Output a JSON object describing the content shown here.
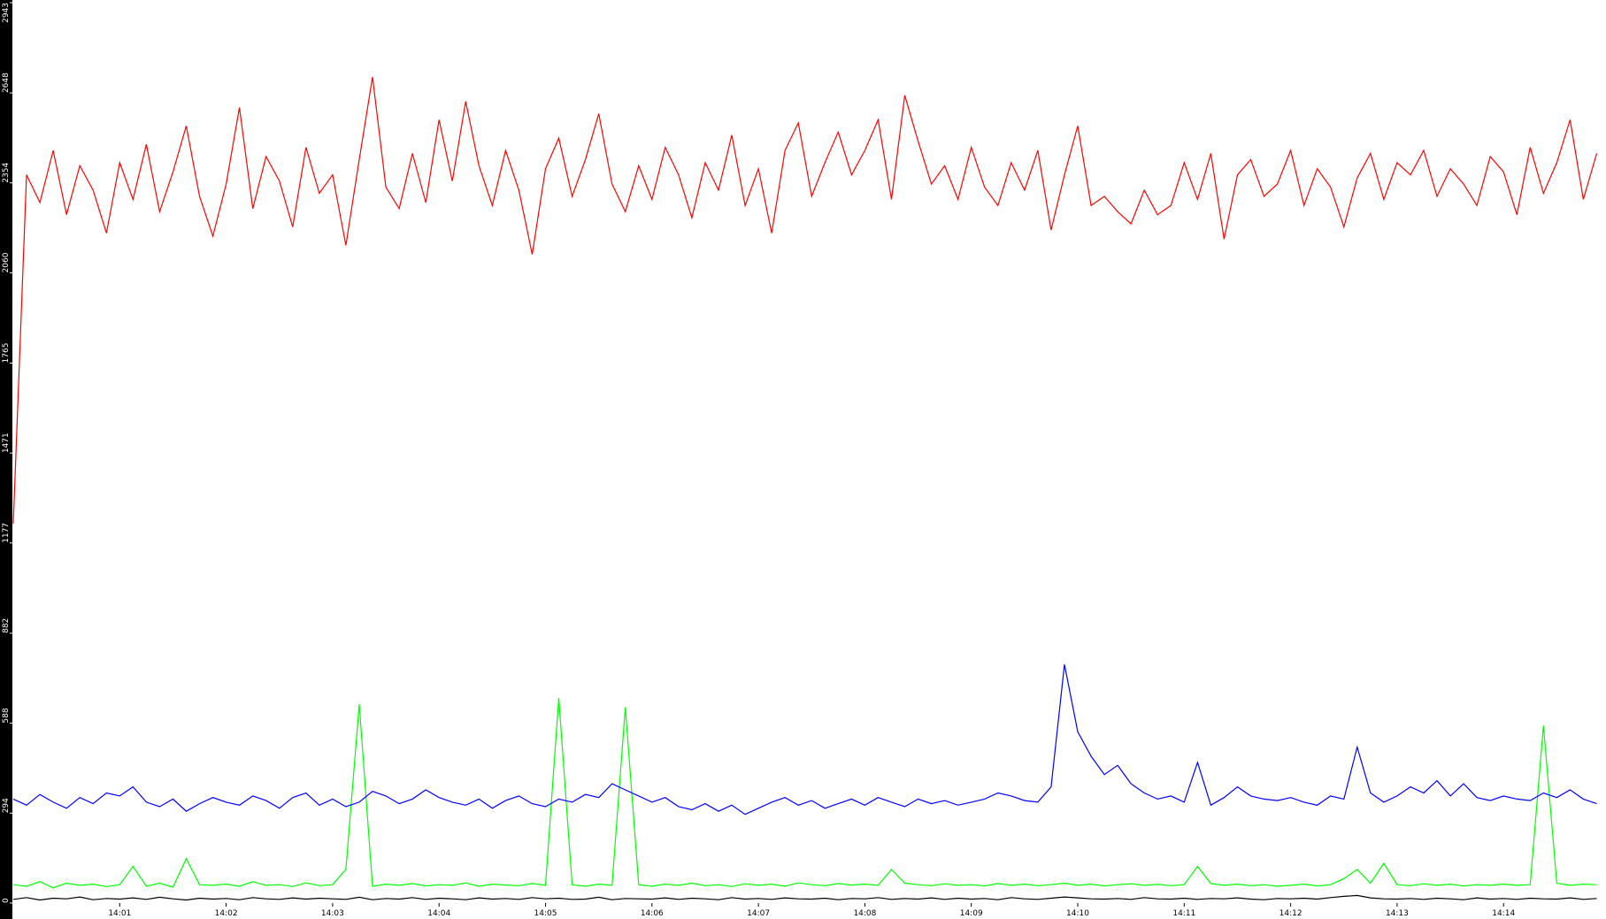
{
  "chart_data": {
    "type": "line",
    "categories": [
      null,
      null,
      null,
      null,
      null,
      null,
      null,
      null,
      "14:01",
      null,
      null,
      null,
      null,
      null,
      null,
      null,
      "14:02",
      null,
      null,
      null,
      null,
      null,
      null,
      null,
      "14:03",
      null,
      null,
      null,
      null,
      null,
      null,
      null,
      "14:04",
      null,
      null,
      null,
      null,
      null,
      null,
      null,
      "14:05",
      null,
      null,
      null,
      null,
      null,
      null,
      null,
      "14:06",
      null,
      null,
      null,
      null,
      null,
      null,
      null,
      "14:07",
      null,
      null,
      null,
      null,
      null,
      null,
      null,
      "14:08",
      null,
      null,
      null,
      null,
      null,
      null,
      null,
      "14:09",
      null,
      null,
      null,
      null,
      null,
      null,
      null,
      "14:10",
      null,
      null,
      null,
      null,
      null,
      null,
      null,
      "14:11",
      null,
      null,
      null,
      null,
      null,
      null,
      null,
      "14:12",
      null,
      null,
      null,
      null,
      null,
      null,
      null,
      "14:13",
      null,
      null,
      null,
      null,
      null,
      null,
      null,
      "14:14",
      null,
      null,
      null,
      null,
      null,
      null,
      null
    ],
    "ylim": [
      0,
      2943
    ],
    "yticks": [
      0,
      294,
      588,
      882,
      1177,
      1471,
      1765,
      2060,
      2354,
      2648,
      2943
    ],
    "series": [
      {
        "color": "#ff0000",
        "values": [
          1240,
          2380,
          2290,
          2460,
          2250,
          2410,
          2330,
          2190,
          2420,
          2300,
          2480,
          2260,
          2390,
          2540,
          2310,
          2180,
          2350,
          2600,
          2270,
          2440,
          2360,
          2210,
          2470,
          2320,
          2380,
          2150,
          2430,
          2700,
          2340,
          2270,
          2450,
          2290,
          2560,
          2360,
          2620,
          2410,
          2280,
          2460,
          2330,
          2120,
          2400,
          2500,
          2310,
          2430,
          2580,
          2350,
          2260,
          2410,
          2300,
          2470,
          2380,
          2240,
          2420,
          2330,
          2510,
          2280,
          2400,
          2190,
          2460,
          2550,
          2310,
          2420,
          2520,
          2380,
          2460,
          2560,
          2300,
          2640,
          2490,
          2350,
          2410,
          2300,
          2470,
          2340,
          2280,
          2420,
          2330,
          2460,
          2200,
          2380,
          2540,
          2280,
          2310,
          2260,
          2220,
          2330,
          2250,
          2280,
          2420,
          2300,
          2450,
          2170,
          2380,
          2430,
          2310,
          2350,
          2460,
          2280,
          2400,
          2340,
          2210,
          2370,
          2450,
          2300,
          2420,
          2380,
          2460,
          2310,
          2400,
          2350,
          2280,
          2440,
          2390,
          2250,
          2470,
          2320,
          2420,
          2560,
          2300,
          2450
        ]
      },
      {
        "color": "#0000ff",
        "values": [
          340,
          320,
          355,
          330,
          310,
          345,
          325,
          360,
          350,
          380,
          330,
          315,
          340,
          300,
          325,
          345,
          330,
          320,
          350,
          335,
          310,
          345,
          360,
          320,
          340,
          315,
          330,
          365,
          350,
          325,
          340,
          370,
          345,
          330,
          320,
          340,
          310,
          335,
          350,
          325,
          315,
          340,
          330,
          355,
          345,
          390,
          370,
          350,
          330,
          345,
          315,
          305,
          325,
          300,
          320,
          290,
          310,
          330,
          345,
          320,
          335,
          310,
          325,
          340,
          320,
          345,
          330,
          315,
          340,
          325,
          335,
          320,
          330,
          340,
          360,
          350,
          335,
          330,
          380,
          780,
          560,
          480,
          420,
          450,
          390,
          360,
          340,
          350,
          330,
          460,
          320,
          345,
          380,
          350,
          340,
          335,
          345,
          330,
          320,
          350,
          340,
          510,
          360,
          330,
          350,
          380,
          360,
          400,
          350,
          390,
          345,
          335,
          350,
          340,
          335,
          360,
          345,
          370,
          340,
          325
        ]
      },
      {
        "color": "#00ff00",
        "values": [
          60,
          55,
          70,
          50,
          65,
          58,
          62,
          54,
          60,
          120,
          55,
          65,
          52,
          145,
          60,
          58,
          62,
          55,
          70,
          58,
          60,
          54,
          66,
          57,
          60,
          110,
          650,
          55,
          62,
          58,
          64,
          56,
          60,
          58,
          66,
          55,
          62,
          59,
          57,
          64,
          58,
          670,
          60,
          55,
          62,
          58,
          640,
          60,
          55,
          62,
          58,
          65,
          57,
          60,
          54,
          63,
          58,
          62,
          55,
          66,
          60,
          57,
          64,
          59,
          62,
          58,
          110,
          65,
          60,
          57,
          63,
          58,
          60,
          56,
          64,
          58,
          62,
          57,
          60,
          65,
          58,
          62,
          56,
          60,
          63,
          58,
          61,
          57,
          60,
          120,
          64,
          58,
          62,
          57,
          60,
          55,
          58,
          62,
          56,
          60,
          80,
          110,
          65,
          130,
          60,
          57,
          63,
          58,
          62,
          56,
          60,
          58,
          62,
          58,
          60,
          580,
          65,
          58,
          62,
          60
        ]
      },
      {
        "color": "#000000",
        "values": [
          12,
          18,
          10,
          16,
          14,
          20,
          11,
          15,
          13,
          17,
          12,
          19,
          14,
          10,
          16,
          13,
          15,
          11,
          18,
          14,
          12,
          17,
          13,
          16,
          14,
          12,
          19,
          11,
          15,
          13,
          18,
          12,
          16,
          14,
          11,
          17,
          13,
          15,
          12,
          18,
          14,
          16,
          12,
          13,
          19,
          11,
          15,
          14,
          13,
          17,
          12,
          16,
          14,
          11,
          18,
          13,
          15,
          12,
          17,
          14,
          13,
          16,
          11,
          15,
          14,
          18,
          12,
          15,
          13,
          17,
          12,
          16,
          13,
          15,
          11,
          18,
          14,
          12,
          16,
          20,
          17,
          14,
          13,
          15,
          12,
          18,
          14,
          13,
          16,
          12,
          15,
          14,
          17,
          13,
          11,
          15,
          14,
          16,
          13,
          18,
          22,
          25,
          17,
          14,
          13,
          15,
          12,
          16,
          14,
          11,
          17,
          13,
          15,
          12,
          16,
          14,
          13,
          17,
          12,
          15
        ]
      }
    ]
  }
}
